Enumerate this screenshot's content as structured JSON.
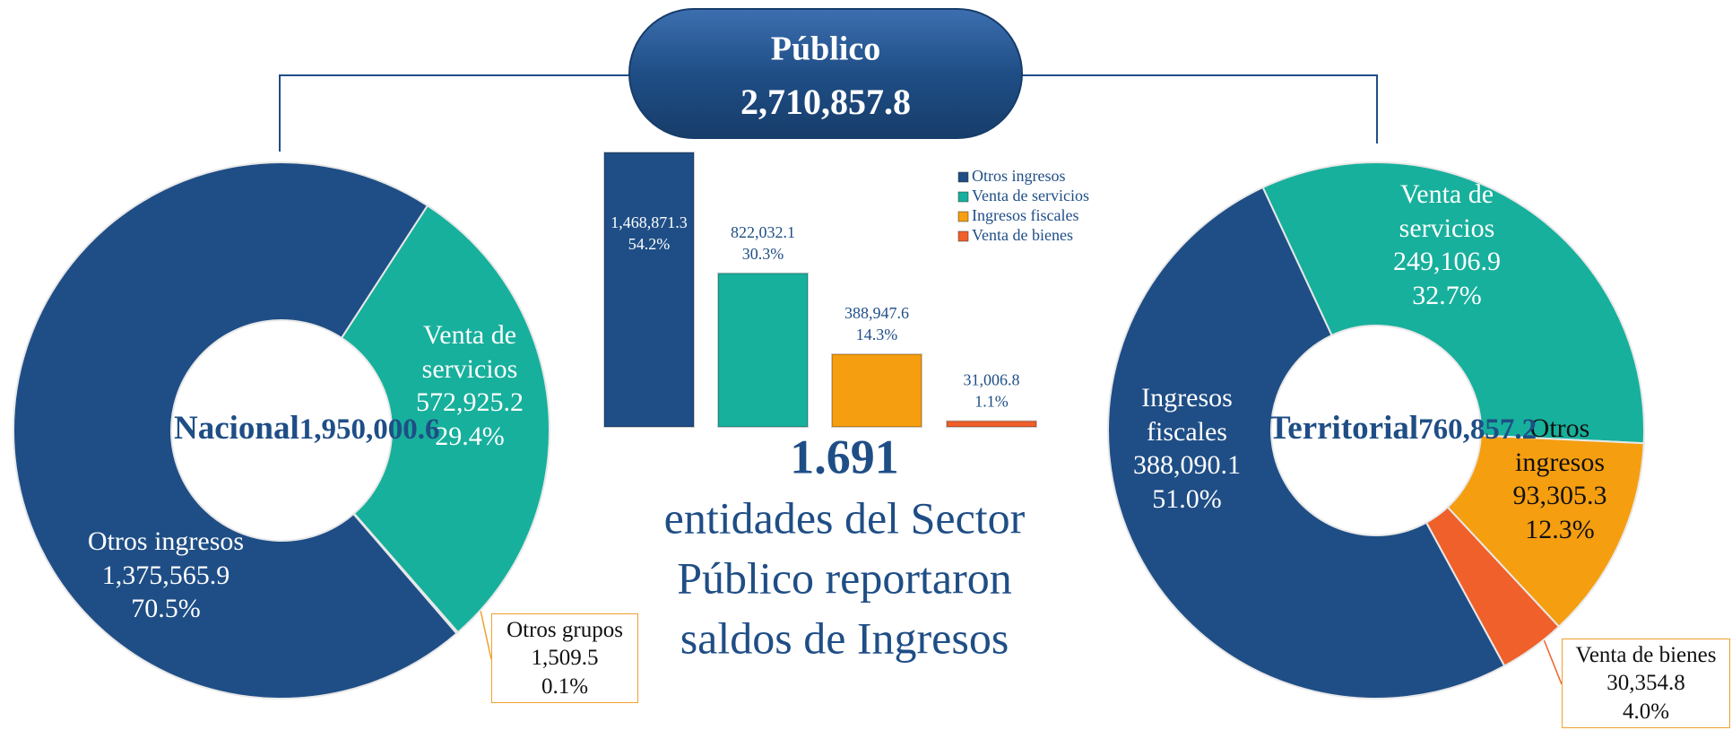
{
  "header": {
    "title": "Público",
    "total": "2,710,857.8"
  },
  "summary": {
    "count": "1.691",
    "text_lines": [
      "entidades del Sector",
      "Público reportaron",
      "saldos de Ingresos"
    ]
  },
  "chart_data": [
    {
      "type": "donut",
      "center_title": "Nacional",
      "center_value": "1,950,000.6",
      "categories": [
        "Venta de servicios",
        "Otros grupos",
        "Otros ingresos"
      ],
      "values": [
        29.4,
        0.1,
        70.5
      ],
      "value_labels": [
        "29.4%",
        "0.1%",
        "70.5%"
      ],
      "amounts": [
        572925.2,
        1509.5,
        1375565.9
      ],
      "amount_labels": [
        "572,925.2",
        "1,509.5",
        "1,375,565.9"
      ],
      "colors": [
        "#17b09c",
        "#f0a030",
        "#1f4e86"
      ]
    },
    {
      "type": "bar",
      "categories": [
        "Otros ingresos",
        "Venta de servicios",
        "Ingresos fiscales",
        "Venta de bienes"
      ],
      "values": [
        1468871.3,
        822032.1,
        388947.6,
        31006.8
      ],
      "value_labels": [
        "1,468,871.3",
        "822,032.1",
        "388,947.6",
        "31,006.8"
      ],
      "shares": [
        54.2,
        30.3,
        14.3,
        1.1
      ],
      "share_labels": [
        "54.2%",
        "30.3%",
        "14.3%",
        "1.1%"
      ],
      "colors": [
        "#1f4e86",
        "#17b09c",
        "#f59e10",
        "#f0602a"
      ],
      "legend": "top-right"
    },
    {
      "type": "donut",
      "center_title": "Territorial",
      "center_value": "760,857.2",
      "categories": [
        "Venta de servicios",
        "Otros ingresos",
        "Venta de bienes",
        "Ingresos fiscales"
      ],
      "values": [
        32.7,
        12.3,
        4.0,
        51.0
      ],
      "value_labels": [
        "32.7%",
        "12.3%",
        "4.0%",
        "51.0%"
      ],
      "amounts": [
        249106.9,
        93305.3,
        30354.8,
        388090.1
      ],
      "amount_labels": [
        "249,106.9",
        "93,305.3",
        "30,354.8",
        "388,090.1"
      ],
      "colors": [
        "#17b09c",
        "#f59e10",
        "#f0602a",
        "#1f4e86"
      ]
    }
  ]
}
